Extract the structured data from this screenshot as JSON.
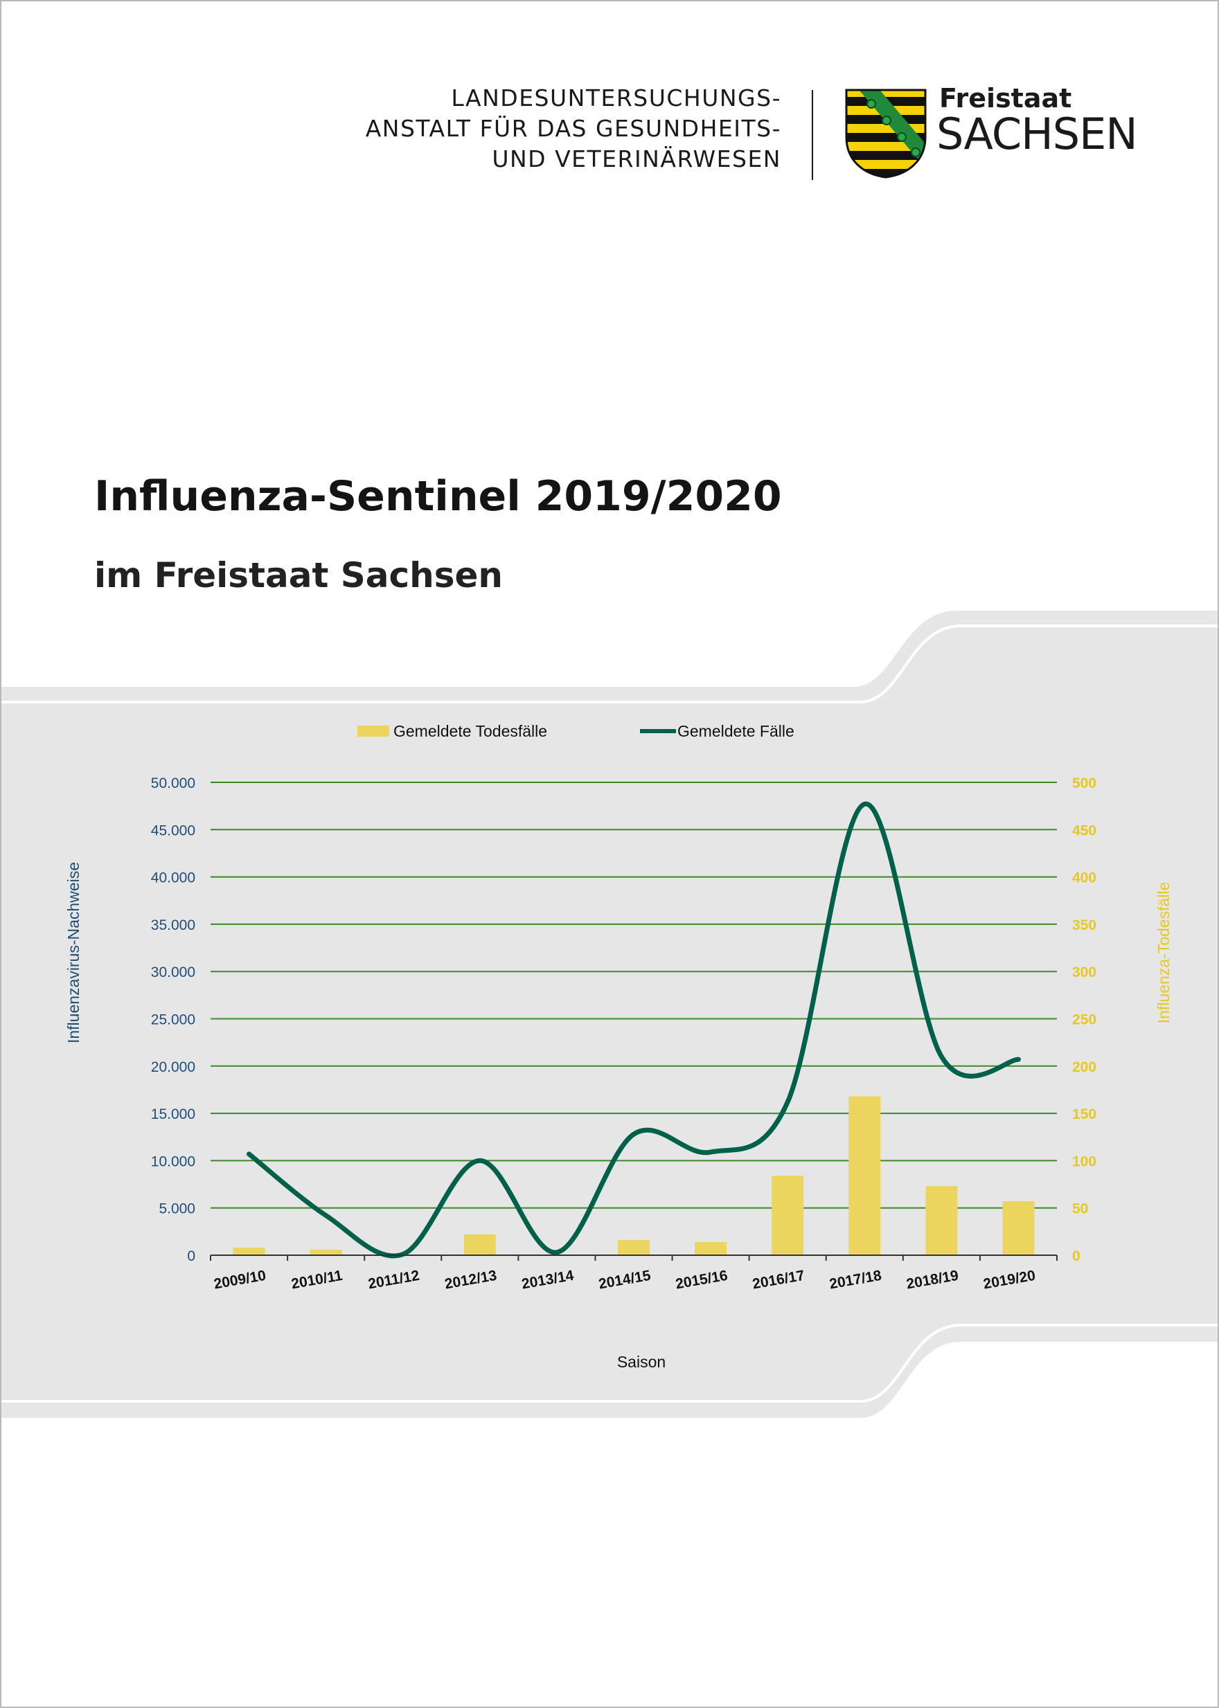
{
  "header": {
    "institution_lines": [
      "LANDESUNTERSUCHUNGS-",
      "ANSTALT FÜR DAS GESUNDHEITS-",
      "UND VETERINÄRWESEN"
    ],
    "brand_top": "Freistaat",
    "brand_main": "SACHSEN",
    "crest_icon": "saxony-crest-icon"
  },
  "document": {
    "title": "Influenza-Sentinel 2019/2020",
    "subtitle": "im Freistaat Sachsen"
  },
  "colors": {
    "bars": "#ecd55f",
    "line": "#00614a",
    "grid": "#3a8a2a",
    "right_axis": "#e6c81e",
    "left_axis_label": "#1f4e79",
    "band": "#e6e6e6"
  },
  "chart_data": {
    "type": "bar",
    "title": "",
    "xlabel": "Saison",
    "ylabel": "Influenzavirus-Nachweise",
    "ylabel_right": "Influenza-Todesfälle",
    "categories": [
      "2009/10",
      "2010/11",
      "2011/12",
      "2012/13",
      "2013/14",
      "2014/15",
      "2015/16",
      "2016/17",
      "2017/18",
      "2018/19",
      "2019/20"
    ],
    "ylim": [
      0,
      50000
    ],
    "ylim_right": [
      0,
      500
    ],
    "yticks": [
      "0",
      "5.000",
      "10.000",
      "15.000",
      "20.000",
      "25.000",
      "30.000",
      "35.000",
      "40.000",
      "45.000",
      "50.000"
    ],
    "yticks_right": [
      "0",
      "50",
      "100",
      "150",
      "200",
      "250",
      "300",
      "350",
      "400",
      "450",
      "500"
    ],
    "grid": true,
    "legend_position": "top-center",
    "series": [
      {
        "name": "Gemeldete Todesfälle",
        "type": "bar",
        "axis": "right",
        "values": [
          8,
          6,
          0,
          22,
          0,
          16,
          14,
          84,
          168,
          73,
          57
        ]
      },
      {
        "name": "Gemeldete Fälle",
        "type": "line",
        "axis": "left",
        "smooth": true,
        "values": [
          10700,
          4200,
          100,
          10000,
          300,
          12800,
          10900,
          16200,
          47700,
          21000,
          20700
        ]
      }
    ]
  }
}
